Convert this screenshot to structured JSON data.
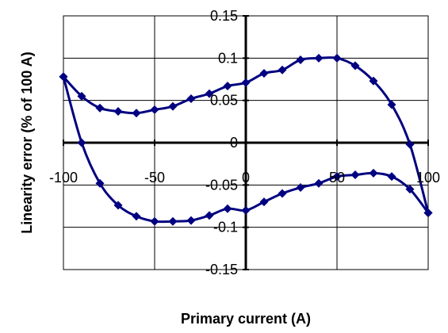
{
  "chart_data": {
    "type": "scatter",
    "title": "",
    "xlabel": "Primary current (A)",
    "ylabel": "Linearity error  (% of 100 A)",
    "xlim": [
      -100,
      100
    ],
    "ylim": [
      -0.15,
      0.15
    ],
    "x_ticks": [
      -100,
      -50,
      0,
      50,
      100
    ],
    "x_tick_labels": [
      "-100",
      "-50",
      "0",
      "50",
      "100"
    ],
    "y_ticks": [
      0.15,
      0.1,
      0.05,
      0,
      -0.05,
      -0.1,
      -0.15
    ],
    "y_tick_labels": [
      "0.15",
      "0.1",
      "0.05",
      "0",
      "-0.05",
      "-0.1",
      "-0.15"
    ],
    "grid": true,
    "legend": "none",
    "series": [
      {
        "color": "#000080",
        "marker": "diamond",
        "smooth": true,
        "points": [
          [
            -100,
            0.078
          ],
          [
            -90,
            0.055
          ],
          [
            -80,
            0.041
          ],
          [
            -70,
            0.037
          ],
          [
            -60,
            0.035
          ],
          [
            -50,
            0.039
          ],
          [
            -40,
            0.043
          ],
          [
            -30,
            0.052
          ],
          [
            -20,
            0.058
          ],
          [
            -10,
            0.067
          ],
          [
            0,
            0.071
          ],
          [
            10,
            0.082
          ],
          [
            20,
            0.086
          ],
          [
            30,
            0.098
          ],
          [
            40,
            0.1
          ],
          [
            50,
            0.1
          ],
          [
            60,
            0.091
          ],
          [
            70,
            0.073
          ],
          [
            80,
            0.045
          ],
          [
            90,
            -0.002
          ],
          [
            100,
            -0.083
          ]
        ]
      },
      {
        "color": "#000080",
        "marker": "diamond",
        "smooth": true,
        "points": [
          [
            -100,
            0.078
          ],
          [
            -90,
            0.0
          ],
          [
            -80,
            -0.048
          ],
          [
            -70,
            -0.074
          ],
          [
            -60,
            -0.087
          ],
          [
            -50,
            -0.093
          ],
          [
            -40,
            -0.093
          ],
          [
            -30,
            -0.092
          ],
          [
            -20,
            -0.086
          ],
          [
            -10,
            -0.078
          ],
          [
            0,
            -0.08
          ],
          [
            10,
            -0.07
          ],
          [
            20,
            -0.06
          ],
          [
            30,
            -0.053
          ],
          [
            40,
            -0.048
          ],
          [
            50,
            -0.04
          ],
          [
            60,
            -0.038
          ],
          [
            70,
            -0.036
          ],
          [
            80,
            -0.04
          ],
          [
            90,
            -0.055
          ],
          [
            100,
            -0.083
          ]
        ]
      }
    ]
  }
}
